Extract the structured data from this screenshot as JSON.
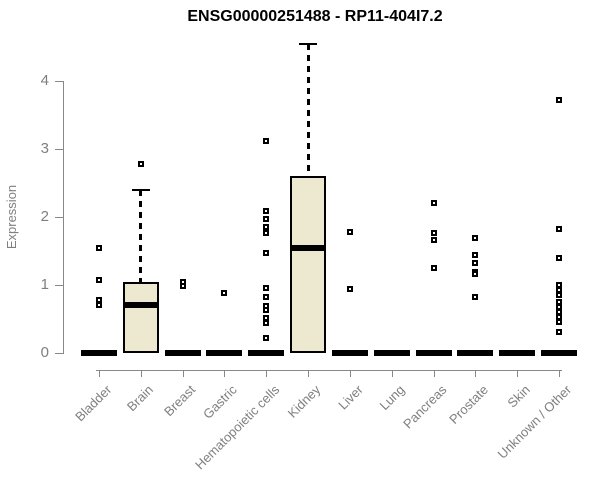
{
  "title": "ENSG00000251488 - RP11-404I7.2",
  "chart_data": {
    "type": "boxplot",
    "title": "ENSG00000251488 - RP11-404I7.2",
    "xlabel": "",
    "ylabel": "Expression",
    "ylim": [
      0,
      4.6
    ],
    "yticks": [
      0,
      1,
      2,
      3,
      4
    ],
    "grid": false,
    "legend": "none",
    "categories": [
      "Bladder",
      "Brain",
      "Breast",
      "Gastric",
      "Hematopoietic cells",
      "Kidney",
      "Liver",
      "Lung",
      "Pancreas",
      "Prostate",
      "Skin",
      "Unknown / Other"
    ],
    "boxes": [
      {
        "category": "Bladder",
        "q1": 0,
        "median": 0,
        "q3": 0,
        "whisker_low": 0,
        "whisker_high": 0,
        "outliers": [
          1.54,
          1.08,
          0.78,
          0.7
        ]
      },
      {
        "category": "Brain",
        "q1": 0,
        "median": 0.7,
        "q3": 1.04,
        "whisker_low": 0,
        "whisker_high": 2.4,
        "outliers": [
          2.78
        ]
      },
      {
        "category": "Breast",
        "q1": 0,
        "median": 0,
        "q3": 0,
        "whisker_low": 0,
        "whisker_high": 0,
        "outliers": [
          1.05,
          0.98
        ]
      },
      {
        "category": "Gastric",
        "q1": 0,
        "median": 0,
        "q3": 0,
        "whisker_low": 0,
        "whisker_high": 0,
        "outliers": [
          0.88
        ]
      },
      {
        "category": "Hematopoietic cells",
        "q1": 0,
        "median": 0,
        "q3": 0,
        "whisker_low": 0,
        "whisker_high": 0,
        "outliers": [
          3.12,
          2.09,
          1.97,
          1.85,
          1.76,
          1.47,
          0.96,
          0.82,
          0.69,
          0.63,
          0.51,
          0.44,
          0.22
        ]
      },
      {
        "category": "Kidney",
        "q1": 0,
        "median": 1.54,
        "q3": 2.6,
        "whisker_low": 0,
        "whisker_high": 4.55,
        "outliers": []
      },
      {
        "category": "Liver",
        "q1": 0,
        "median": 0,
        "q3": 0,
        "whisker_low": 0,
        "whisker_high": 0,
        "outliers": [
          1.78,
          0.94
        ]
      },
      {
        "category": "Lung",
        "q1": 0,
        "median": 0,
        "q3": 0,
        "whisker_low": 0,
        "whisker_high": 0,
        "outliers": []
      },
      {
        "category": "Pancreas",
        "q1": 0,
        "median": 0,
        "q3": 0,
        "whisker_low": 0,
        "whisker_high": 0,
        "outliers": [
          2.2,
          1.77,
          1.66,
          1.25
        ]
      },
      {
        "category": "Prostate",
        "q1": 0,
        "median": 0,
        "q3": 0,
        "whisker_low": 0,
        "whisker_high": 0,
        "outliers": [
          1.69,
          1.44,
          1.32,
          1.19,
          1.16,
          0.82
        ]
      },
      {
        "category": "Skin",
        "q1": 0,
        "median": 0,
        "q3": 0,
        "whisker_low": 0,
        "whisker_high": 0,
        "outliers": []
      },
      {
        "category": "Unknown / Other",
        "q1": 0,
        "median": 0,
        "q3": 0,
        "whisker_low": 0,
        "whisker_high": 0,
        "outliers": [
          3.72,
          1.82,
          1.4,
          1.0,
          0.93,
          0.85,
          0.75,
          0.68,
          0.6,
          0.53,
          0.46,
          0.31
        ]
      }
    ],
    "colors": {
      "box_fill": "#EDE8D0",
      "box_border": "#000000",
      "median": "#000000",
      "axis": "#888888",
      "tick_label": "#7f7f7f",
      "title": "#000000",
      "background": "#ffffff"
    }
  }
}
